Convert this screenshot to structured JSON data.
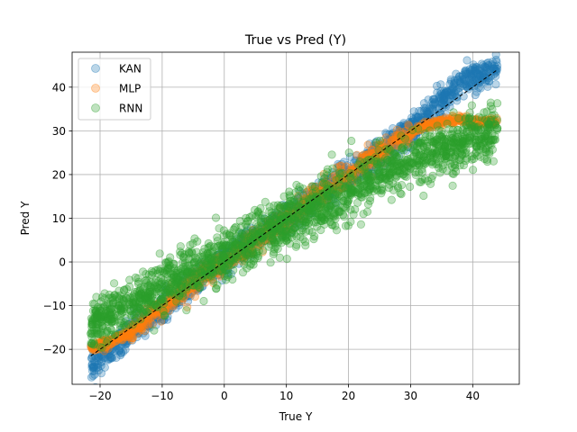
{
  "chart_data": {
    "type": "scatter",
    "title": "True vs Pred (Y)",
    "xlabel": "True Y",
    "ylabel": "Pred Y",
    "xlim": [
      -24.5,
      47.5
    ],
    "ylim": [
      -28,
      48
    ],
    "xticks": [
      -20,
      -10,
      0,
      10,
      20,
      30,
      40
    ],
    "yticks": [
      -20,
      -10,
      0,
      10,
      20,
      30,
      40
    ],
    "xtick_labels": [
      "−20",
      "−10",
      "0",
      "10",
      "20",
      "30",
      "40"
    ],
    "ytick_labels": [
      "−20",
      "−10",
      "0",
      "10",
      "20",
      "30",
      "40"
    ],
    "grid": true,
    "legend_position": "top-left",
    "reference_line": {
      "style": "dashed",
      "color": "#000000",
      "from": [
        -21.5,
        -21.5
      ],
      "to": [
        44,
        44
      ]
    },
    "series": [
      {
        "name": "KAN",
        "color": "#1f77b4",
        "x_range": [
          -21.5,
          44
        ],
        "approx_relation": "y ≈ x",
        "sample_points": [
          [
            -21,
            -23.5
          ],
          [
            -20,
            -22
          ],
          [
            -18,
            -20
          ],
          [
            -15,
            -16
          ],
          [
            -10,
            -11
          ],
          [
            -5,
            -5
          ],
          [
            0,
            0
          ],
          [
            5,
            5
          ],
          [
            10,
            10
          ],
          [
            15,
            15
          ],
          [
            20,
            20
          ],
          [
            25,
            25
          ],
          [
            30,
            30
          ],
          [
            33,
            34
          ],
          [
            35,
            37
          ],
          [
            37,
            40
          ],
          [
            38,
            41
          ],
          [
            40,
            42
          ],
          [
            42,
            43.5
          ],
          [
            43,
            44
          ]
        ]
      },
      {
        "name": "MLP",
        "color": "#ff7f0e",
        "x_range": [
          -21.5,
          44
        ],
        "approx_relation": "y ≈ x, saturating near 32 for high x and near -19 for low x",
        "sample_points": [
          [
            -21.5,
            -19.5
          ],
          [
            -20,
            -19
          ],
          [
            -18,
            -18
          ],
          [
            -15,
            -16
          ],
          [
            -10,
            -10
          ],
          [
            0,
            0
          ],
          [
            10,
            10
          ],
          [
            20,
            20
          ],
          [
            28,
            28
          ],
          [
            32,
            31
          ],
          [
            35,
            32
          ],
          [
            38,
            32.5
          ],
          [
            40,
            32
          ],
          [
            42,
            32
          ],
          [
            43.5,
            32
          ]
        ]
      },
      {
        "name": "RNN",
        "color": "#2ca02c",
        "x_range": [
          -21.5,
          44
        ],
        "approx_relation": "y ≈ 0.7x + 1.5, wide scatter",
        "sample_points": [
          [
            -21.5,
            -15
          ],
          [
            -20,
            -13
          ],
          [
            -15,
            -10
          ],
          [
            -10,
            -5
          ],
          [
            -5,
            -2
          ],
          [
            0,
            1
          ],
          [
            5,
            5
          ],
          [
            10,
            9
          ],
          [
            15,
            12
          ],
          [
            20,
            16
          ],
          [
            25,
            20
          ],
          [
            30,
            23
          ],
          [
            35,
            26
          ],
          [
            40,
            28
          ],
          [
            43.5,
            30
          ]
        ]
      }
    ]
  }
}
